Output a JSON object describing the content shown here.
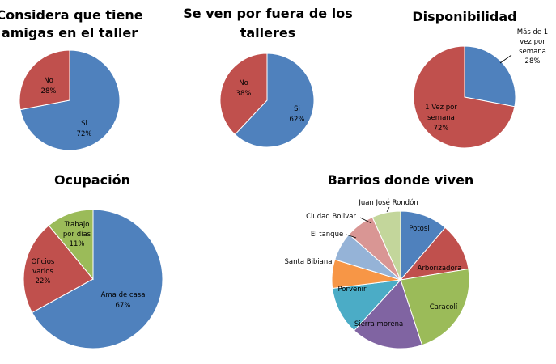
{
  "chart_data": [
    {
      "type": "pie",
      "title": [
        "Considera que tiene",
        "amigas en el taller"
      ],
      "slices": [
        {
          "label": "Si",
          "value": 72,
          "percent_label": "72%",
          "color": "#4f81bd"
        },
        {
          "label": "No",
          "value": 28,
          "percent_label": "28%",
          "color": "#c0504d"
        }
      ]
    },
    {
      "type": "pie",
      "title": [
        "Se ven por fuera de los",
        "talleres"
      ],
      "slices": [
        {
          "label": "Si",
          "value": 62,
          "percent_label": "62%",
          "color": "#4f81bd"
        },
        {
          "label": "No",
          "value": 38,
          "percent_label": "38%",
          "color": "#c0504d"
        }
      ]
    },
    {
      "type": "pie",
      "title": [
        "Disponibilidad"
      ],
      "slices": [
        {
          "label": "Más de 1 vez por semana",
          "value": 28,
          "percent_label": "28%",
          "color": "#4f81bd"
        },
        {
          "label": "1 Vez por semana",
          "value": 72,
          "percent_label": "72%",
          "color": "#c0504d"
        }
      ]
    },
    {
      "type": "pie",
      "title": [
        "Ocupación"
      ],
      "slices": [
        {
          "label": "Ama de casa",
          "value": 67,
          "percent_label": "67%",
          "color": "#4f81bd"
        },
        {
          "label": "Oficios varios",
          "value": 22,
          "percent_label": "22%",
          "color": "#c0504d"
        },
        {
          "label": "Trabajo por días",
          "value": 11,
          "percent_label": "11%",
          "color": "#9bbb59"
        }
      ]
    },
    {
      "type": "pie",
      "title": [
        "Barrios donde viven"
      ],
      "slices": [
        {
          "label": "Potosi",
          "value": 10,
          "color": "#4f81bd"
        },
        {
          "label": "Arborizadora",
          "value": 10,
          "color": "#c0504d"
        },
        {
          "label": "Caracolí",
          "value": 20,
          "color": "#9bbb59"
        },
        {
          "label": "Sierra morena",
          "value": 15,
          "color": "#8064a2"
        },
        {
          "label": "Porvenir",
          "value": 10,
          "color": "#4bacc6"
        },
        {
          "label": "Santa Bibiana",
          "value": 6,
          "color": "#f79646"
        },
        {
          "label": "El tanque",
          "value": 6,
          "color": "#95b3d7"
        },
        {
          "label": "Ciudad Bolivar",
          "value": 6,
          "color": "#d99694"
        },
        {
          "label": "Juan José Rondón",
          "value": 6,
          "color": "#c3d69b"
        }
      ]
    }
  ]
}
